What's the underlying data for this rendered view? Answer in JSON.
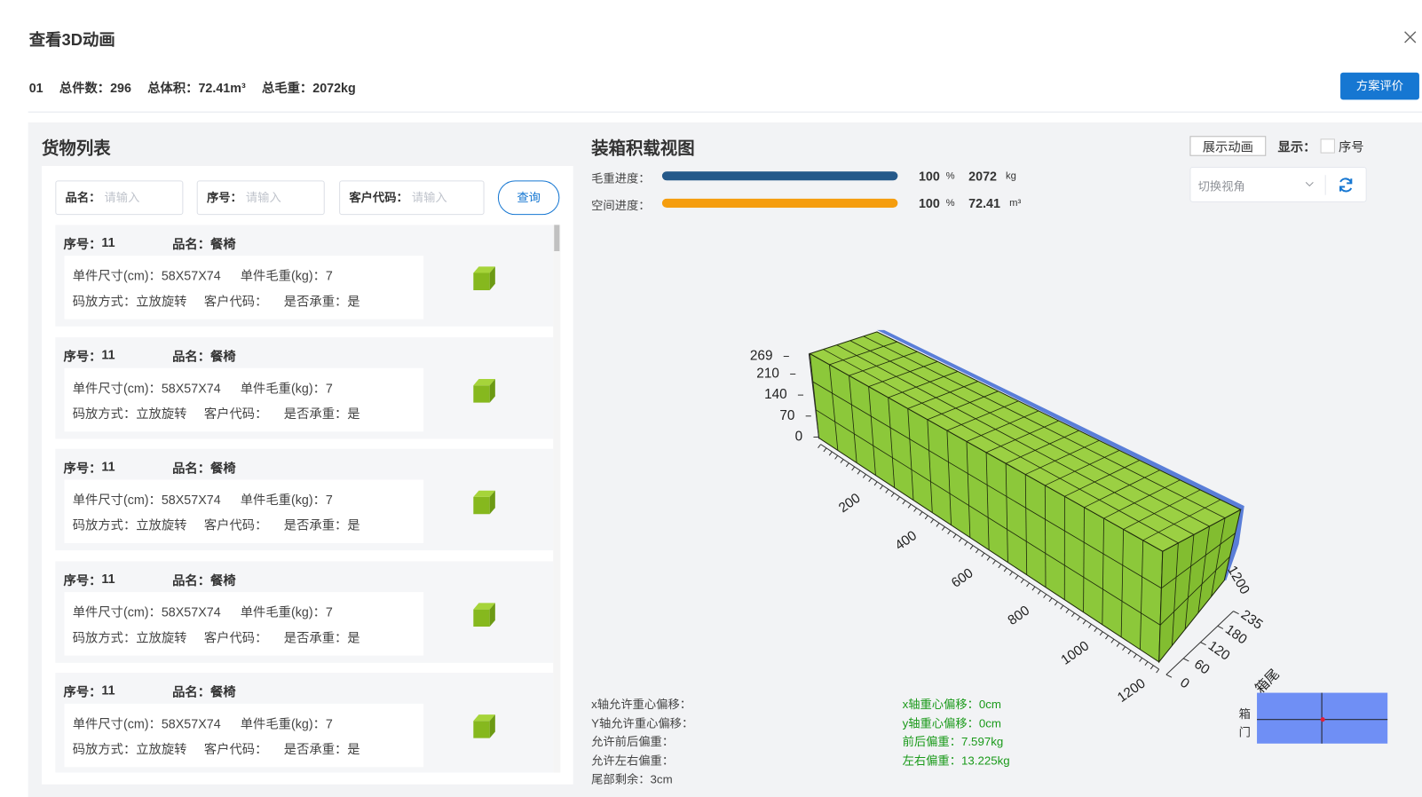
{
  "dialog": {
    "title": "查看3D动画"
  },
  "summary": {
    "plan_no": "01",
    "count_label": "总件数：",
    "count": "296",
    "volume_label": "总体积：",
    "volume": "72.41m³",
    "weight_label": "总毛重：",
    "weight": "2072kg"
  },
  "evaluate_button": "方案评价",
  "cargo_list": {
    "title": "货物列表",
    "search": {
      "fields": [
        {
          "label": "品名：",
          "placeholder": "请输入"
        },
        {
          "label": "序号：",
          "placeholder": "请输入"
        },
        {
          "label": "客户代码：",
          "placeholder": "请输入"
        }
      ],
      "button": "查询"
    },
    "items": [
      {
        "seq_label": "序号：",
        "seq": "11",
        "name_label": "品名：",
        "name": "餐椅",
        "size": "单件尺寸(cm)：58X57X74",
        "weight": "单件毛重(kg)：7",
        "placement": "码放方式：立放旋转",
        "customer": "客户代码：",
        "bearing": "是否承重：是"
      },
      {
        "seq_label": "序号：",
        "seq": "11",
        "name_label": "品名：",
        "name": "餐椅",
        "size": "单件尺寸(cm)：58X57X74",
        "weight": "单件毛重(kg)：7",
        "placement": "码放方式：立放旋转",
        "customer": "客户代码：",
        "bearing": "是否承重：是"
      },
      {
        "seq_label": "序号：",
        "seq": "11",
        "name_label": "品名：",
        "name": "餐椅",
        "size": "单件尺寸(cm)：58X57X74",
        "weight": "单件毛重(kg)：7",
        "placement": "码放方式：立放旋转",
        "customer": "客户代码：",
        "bearing": "是否承重：是"
      },
      {
        "seq_label": "序号：",
        "seq": "11",
        "name_label": "品名：",
        "name": "餐椅",
        "size": "单件尺寸(cm)：58X57X74",
        "weight": "单件毛重(kg)：7",
        "placement": "码放方式：立放旋转",
        "customer": "客户代码：",
        "bearing": "是否承重：是"
      },
      {
        "seq_label": "序号：",
        "seq": "11",
        "name_label": "品名：",
        "name": "餐椅",
        "size": "单件尺寸(cm)：58X57X74",
        "weight": "单件毛重(kg)：7",
        "placement": "码放方式：立放旋转",
        "customer": "客户代码：",
        "bearing": "是否承重：是"
      }
    ]
  },
  "load_view": {
    "title": "装箱积载视图",
    "animate_button": "展示动画",
    "display_label": "显示：",
    "display_option": "序号",
    "view_select": "切换视角",
    "progress": [
      {
        "label": "毛重进度：",
        "percent": 100,
        "percent_unit": "%",
        "amount": 2072,
        "unit": "kg"
      },
      {
        "label": "空间进度：",
        "percent": 100,
        "percent_unit": "%",
        "amount": 72.41,
        "unit": "m³"
      }
    ],
    "axes": {
      "height_ticks": [
        269,
        210,
        140,
        70,
        0
      ],
      "length_ticks": [
        200,
        400,
        600,
        800,
        1000,
        1200
      ],
      "width_ticks": [
        0,
        60,
        120,
        180,
        235
      ],
      "end_label": "1200",
      "tail_label": "箱尾"
    },
    "balance": {
      "limits": [
        "x轴允许重心偏移：",
        "Y轴允许重心偏移：",
        "允许前后偏重：",
        "允许左右偏重：",
        "尾部剩余：3cm"
      ],
      "results": [
        "x轴重心偏移：0cm",
        "y轴重心偏移：0cm",
        "前后偏重：7.597kg",
        "左右偏重：13.225kg"
      ]
    },
    "door_label": [
      "箱",
      "门"
    ]
  }
}
